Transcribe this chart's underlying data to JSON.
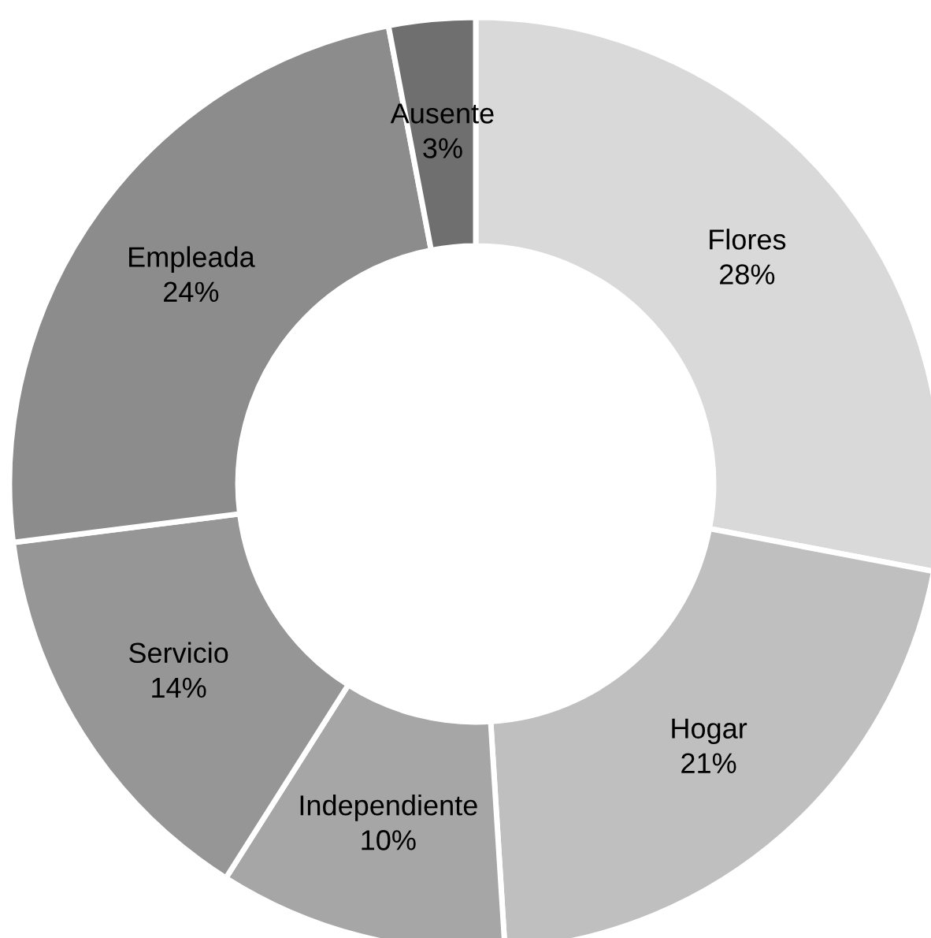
{
  "chart_data": {
    "type": "donut",
    "categories": [
      "Flores",
      "Hogar",
      "Independiente",
      "Servicio",
      "Empleada",
      "Ausente"
    ],
    "values": [
      28,
      21,
      10,
      14,
      24,
      3
    ],
    "colors": [
      "#d9d9d9",
      "#bfbfbf",
      "#a6a6a6",
      "#969696",
      "#8c8c8c",
      "#6f6f6f"
    ],
    "value_labels": [
      "28%",
      "21%",
      "10%",
      "14%",
      "24%",
      "3%"
    ],
    "legend": false
  }
}
